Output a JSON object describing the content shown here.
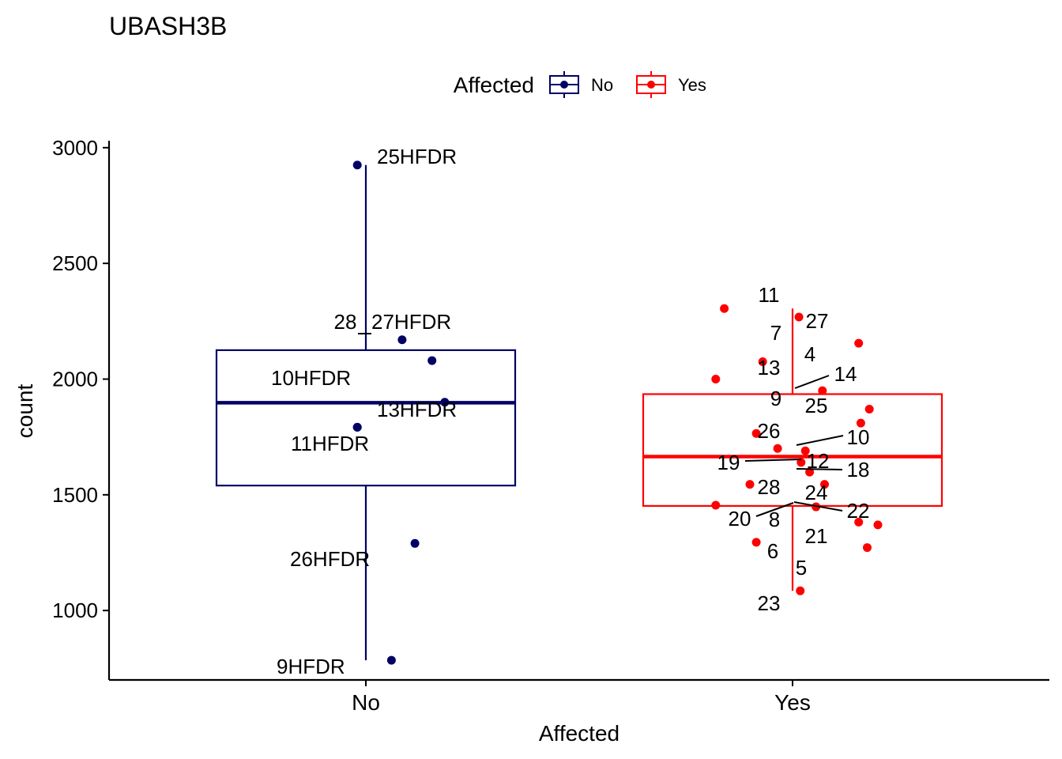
{
  "chart_data": {
    "type": "boxplot",
    "title": "UBASH3B",
    "xlabel": "Affected",
    "ylabel": "count",
    "ylim": [
      700,
      3030
    ],
    "yticks": [
      1000,
      1500,
      2000,
      2500,
      3000
    ],
    "categories": [
      "No",
      "Yes"
    ],
    "legend": {
      "title": "Affected",
      "position": "top",
      "entries": [
        {
          "label": "No",
          "color": "#000066"
        },
        {
          "label": "Yes",
          "color": "#ff0000"
        }
      ]
    },
    "groups": [
      {
        "name": "No",
        "color": "#000066",
        "box": {
          "lower_whisker": 785,
          "q1": 1540,
          "median": 1898,
          "q3": 2125,
          "upper_whisker": 2925
        },
        "points": [
          {
            "label": "25HFDR",
            "x_offset": -0.02,
            "y": 2925
          },
          {
            "label": "27HFDR",
            "x_offset": 0.085,
            "y": 2170
          },
          {
            "label": "28",
            "x_offset": 0.155,
            "y": 2080
          },
          {
            "label": "13HFDR",
            "x_offset": 0.185,
            "y": 1900
          },
          {
            "label": "11HFDR",
            "x_offset": -0.02,
            "y": 1792
          },
          {
            "label": "10HFDR",
            "x_offset": -0.02,
            "y": 1792
          },
          {
            "label": "26HFDR",
            "x_offset": 0.115,
            "y": 1290
          },
          {
            "label": "9HFDR",
            "x_offset": 0.06,
            "y": 785
          }
        ]
      },
      {
        "name": "Yes",
        "color": "#ff0000",
        "box": {
          "lower_whisker": 1085,
          "q1": 1452,
          "median": 1665,
          "q3": 1935,
          "upper_whisker": 2305
        },
        "points": [
          {
            "label": "11",
            "x_offset": -0.16,
            "y": 2305
          },
          {
            "label": "27",
            "x_offset": 0.015,
            "y": 2268
          },
          {
            "label": "7",
            "x_offset": 0.155,
            "y": 2155
          },
          {
            "label": "13",
            "x_offset": -0.07,
            "y": 2075
          },
          {
            "label": "4",
            "x_offset": -0.18,
            "y": 2000
          },
          {
            "label": "14",
            "x_offset": 0.07,
            "y": 1950
          },
          {
            "label": "25",
            "x_offset": 0.18,
            "y": 1870
          },
          {
            "label": "9",
            "x_offset": 0.16,
            "y": 1810
          },
          {
            "label": "26",
            "x_offset": -0.085,
            "y": 1765
          },
          {
            "label": "10",
            "x_offset": -0.035,
            "y": 1700
          },
          {
            "label": "12",
            "x_offset": 0.03,
            "y": 1690
          },
          {
            "label": "19",
            "x_offset": 0.02,
            "y": 1640
          },
          {
            "label": "18",
            "x_offset": 0.04,
            "y": 1598
          },
          {
            "label": "28",
            "x_offset": -0.1,
            "y": 1545
          },
          {
            "label": "24",
            "x_offset": 0.075,
            "y": 1545
          },
          {
            "label": "20",
            "x_offset": -0.18,
            "y": 1455
          },
          {
            "label": "8",
            "x_offset": 0.055,
            "y": 1448
          },
          {
            "label": "22",
            "x_offset": 0.155,
            "y": 1382
          },
          {
            "label": "21",
            "x_offset": 0.2,
            "y": 1370
          },
          {
            "label": "6",
            "x_offset": -0.085,
            "y": 1295
          },
          {
            "label": "5",
            "x_offset": 0.175,
            "y": 1272
          },
          {
            "label": "23",
            "x_offset": 0.018,
            "y": 1085
          }
        ]
      }
    ]
  }
}
